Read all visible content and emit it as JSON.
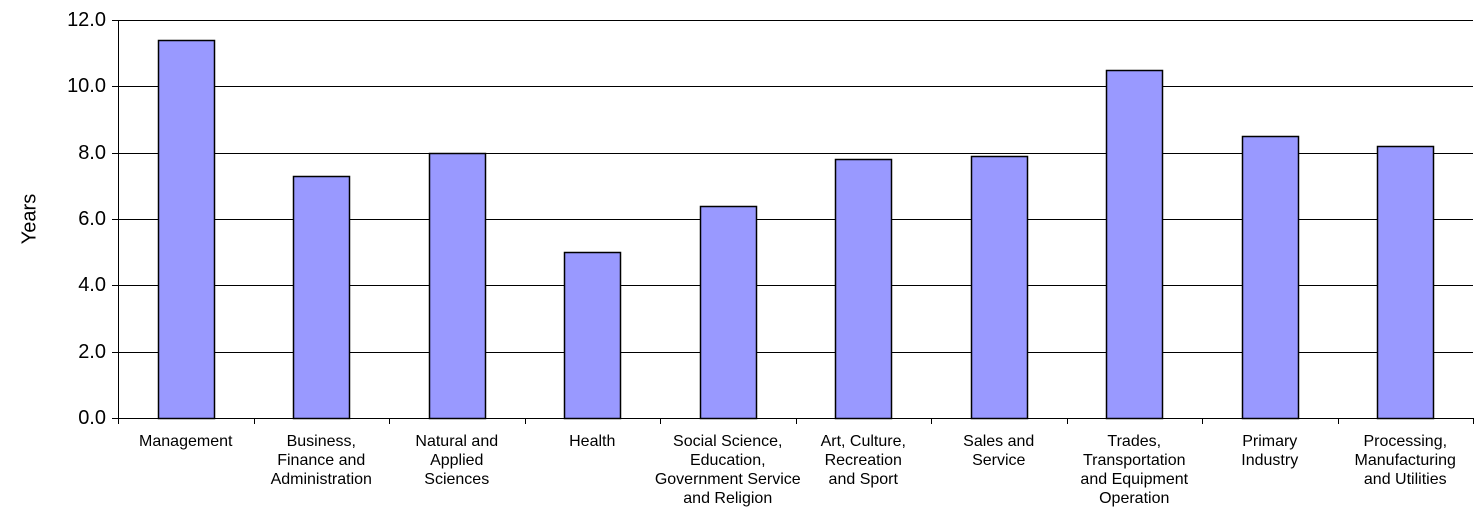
{
  "chart_data": {
    "type": "bar",
    "title": "",
    "xlabel": "",
    "ylabel": "Years",
    "ylim": [
      0,
      12
    ],
    "yticks": [
      "0.0",
      "2.0",
      "4.0",
      "6.0",
      "8.0",
      "10.0",
      "12.0"
    ],
    "grid": true,
    "bar_color": "#9999ff",
    "categories": [
      [
        "Management"
      ],
      [
        "Business,",
        "Finance and",
        "Administration"
      ],
      [
        "Natural and",
        "Applied",
        "Sciences"
      ],
      [
        "Health"
      ],
      [
        "Social Science,",
        "Education,",
        "Government Service",
        "and Religion"
      ],
      [
        "Art, Culture,",
        "Recreation",
        "and Sport"
      ],
      [
        "Sales and",
        "Service"
      ],
      [
        "Trades,",
        "Transportation",
        "and Equipment",
        "Operation"
      ],
      [
        "Primary",
        "Industry"
      ],
      [
        "Processing,",
        "Manufacturing",
        "and Utilities"
      ]
    ],
    "values": [
      11.4,
      7.3,
      8.0,
      5.0,
      6.4,
      7.8,
      7.9,
      10.5,
      8.5,
      8.2
    ]
  }
}
